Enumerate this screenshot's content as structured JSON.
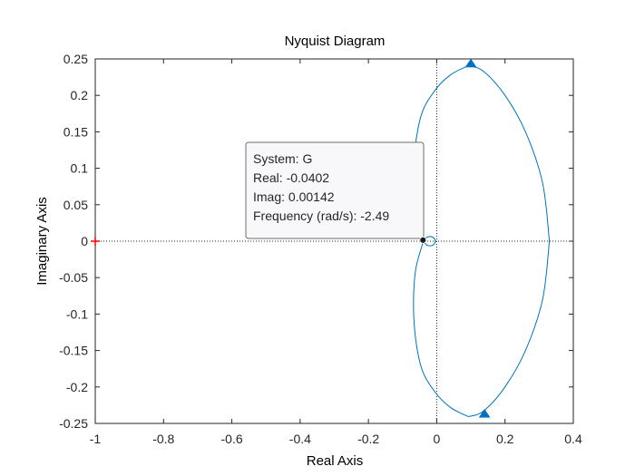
{
  "chart_data": {
    "type": "line",
    "title": "Nyquist Diagram",
    "xlabel": "Real Axis",
    "ylabel": "Imaginary Axis",
    "xlim": [
      -1,
      0.4
    ],
    "ylim": [
      -0.25,
      0.25
    ],
    "xticks": [
      -1,
      -0.8,
      -0.6,
      -0.4,
      -0.2,
      0,
      0.2,
      0.4
    ],
    "xtick_labels": [
      "-1",
      "-0.8",
      "-0.6",
      "-0.4",
      "-0.2",
      "0",
      "0.2",
      "0.4"
    ],
    "yticks": [
      0.25,
      0.2,
      0.15,
      0.1,
      0.05,
      0,
      -0.05,
      -0.1,
      -0.15,
      -0.2,
      -0.25
    ],
    "ytick_labels": [
      "0.25",
      "0.2",
      "0.15",
      "0.1",
      "0.05",
      "0",
      "-0.05",
      "-0.1",
      "-0.15",
      "-0.2",
      "-0.25"
    ],
    "grid": false,
    "zero_lines": true,
    "critical_point": {
      "x": -1,
      "y": 0,
      "marker": "+",
      "color": "#ff0000"
    },
    "series": [
      {
        "color": "#0072bd",
        "upper_branch": [
          [
            -0.04,
            0.0014
          ],
          [
            -0.062,
            0.04
          ],
          [
            -0.068,
            0.09
          ],
          [
            -0.06,
            0.14
          ],
          [
            -0.04,
            0.18
          ],
          [
            0.0,
            0.21
          ],
          [
            0.04,
            0.228
          ],
          [
            0.08,
            0.238
          ],
          [
            0.1,
            0.24
          ],
          [
            0.14,
            0.232
          ],
          [
            0.2,
            0.2
          ],
          [
            0.26,
            0.15
          ],
          [
            0.31,
            0.08
          ],
          [
            0.33,
            0.0
          ]
        ],
        "lower_branch": [
          [
            -0.04,
            -0.0014
          ],
          [
            -0.062,
            -0.04
          ],
          [
            -0.068,
            -0.09
          ],
          [
            -0.06,
            -0.14
          ],
          [
            -0.04,
            -0.18
          ],
          [
            0.0,
            -0.21
          ],
          [
            0.04,
            -0.228
          ],
          [
            0.08,
            -0.238
          ],
          [
            0.1,
            -0.24
          ],
          [
            0.14,
            -0.232
          ],
          [
            0.2,
            -0.2
          ],
          [
            0.26,
            -0.15
          ],
          [
            0.31,
            -0.08
          ],
          [
            0.33,
            0.0
          ]
        ],
        "small_loop": {
          "center": [
            -0.02,
            0.0
          ],
          "radius": 0.016
        },
        "arrows": [
          {
            "x": 0.1,
            "y": 0.24,
            "direction": "left"
          },
          {
            "x": 0.14,
            "y": -0.238,
            "direction": "right"
          }
        ]
      }
    ],
    "datatip": {
      "x": -0.0402,
      "y": 0.00142,
      "lines": [
        "System: G",
        "Real: -0.0402",
        "Imag: 0.00142",
        "Frequency (rad/s): -2.49"
      ]
    }
  },
  "colors": {
    "line": "#0072bd",
    "axis": "#262626",
    "critical": "#ff0000",
    "tip_border": "#6e6e6e",
    "tip_fill": "#f8f8fb"
  }
}
